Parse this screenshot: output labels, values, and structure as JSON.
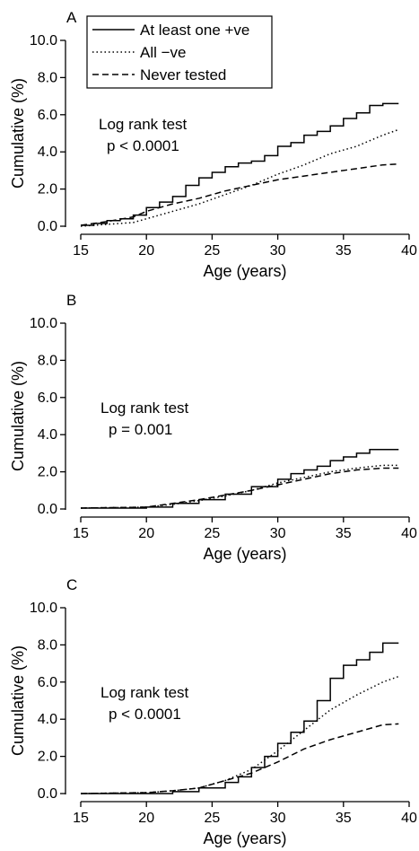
{
  "chart_data": [
    {
      "type": "line",
      "panel_label": "A",
      "xlabel": "Age (years)",
      "ylabel": "Cumulative (%)",
      "xlim": [
        15,
        40
      ],
      "ylim": [
        0,
        10
      ],
      "x_ticks": [
        15,
        20,
        25,
        30,
        35,
        40
      ],
      "y_ticks": [
        0,
        2,
        4,
        6,
        8,
        10
      ],
      "x_tick_labels": [
        "15",
        "20",
        "25",
        "30",
        "35",
        "40"
      ],
      "y_tick_labels": [
        "0.0",
        "2.0",
        "4.0",
        "6.0",
        "8.0",
        "10.0"
      ],
      "annotation": [
        "Log rank test",
        "p < 0.0001"
      ],
      "legend": {
        "placement": "top-left",
        "entries": [
          "At least one +ve",
          "All −ve",
          "Never tested"
        ]
      },
      "series": [
        {
          "name": "At least one +ve",
          "style": "solid",
          "step": true,
          "x": [
            15,
            16,
            17,
            18,
            19,
            20,
            21,
            22,
            23,
            24,
            25,
            26,
            27,
            28,
            29,
            30,
            31,
            32,
            33,
            34,
            35,
            36,
            37,
            38,
            39.2
          ],
          "y": [
            0.05,
            0.15,
            0.3,
            0.4,
            0.6,
            1.0,
            1.3,
            1.6,
            2.2,
            2.6,
            2.9,
            3.2,
            3.4,
            3.5,
            3.8,
            4.3,
            4.5,
            4.9,
            5.1,
            5.4,
            5.8,
            6.1,
            6.5,
            6.6,
            6.6
          ]
        },
        {
          "name": "All −ve",
          "style": "dotted",
          "x": [
            15,
            17,
            19,
            20,
            22,
            24,
            26,
            28,
            30,
            32,
            34,
            36,
            38,
            39.2
          ],
          "y": [
            0.0,
            0.1,
            0.2,
            0.4,
            0.8,
            1.2,
            1.7,
            2.2,
            2.8,
            3.3,
            3.9,
            4.3,
            4.9,
            5.2
          ]
        },
        {
          "name": "Never tested",
          "style": "dashed",
          "x": [
            15,
            17,
            19,
            20,
            22,
            24,
            26,
            28,
            30,
            32,
            34,
            36,
            38,
            39.2
          ],
          "y": [
            0.05,
            0.25,
            0.5,
            0.8,
            1.2,
            1.5,
            1.9,
            2.2,
            2.5,
            2.7,
            2.9,
            3.1,
            3.3,
            3.35
          ]
        }
      ]
    },
    {
      "type": "line",
      "panel_label": "B",
      "xlabel": "Age (years)",
      "ylabel": "Cumulative (%)",
      "xlim": [
        15,
        40
      ],
      "ylim": [
        0,
        10
      ],
      "x_ticks": [
        15,
        20,
        25,
        30,
        35,
        40
      ],
      "y_ticks": [
        0,
        2,
        4,
        6,
        8,
        10
      ],
      "x_tick_labels": [
        "15",
        "20",
        "25",
        "30",
        "35",
        "40"
      ],
      "y_tick_labels": [
        "0.0",
        "2.0",
        "4.0",
        "6.0",
        "8.0",
        "10.0"
      ],
      "annotation": [
        "Log rank test",
        "p = 0.001"
      ],
      "series": [
        {
          "name": "At least one +ve",
          "style": "solid",
          "step": true,
          "x": [
            15,
            20,
            22,
            24,
            26,
            28,
            30,
            31,
            32,
            33,
            34,
            35,
            36,
            37,
            39.2
          ],
          "y": [
            0.05,
            0.1,
            0.3,
            0.5,
            0.8,
            1.2,
            1.6,
            1.9,
            2.1,
            2.3,
            2.6,
            2.8,
            3.0,
            3.2,
            3.2
          ]
        },
        {
          "name": "All −ve",
          "style": "dotted",
          "x": [
            15,
            20,
            22,
            24,
            26,
            28,
            30,
            32,
            34,
            36,
            38,
            39.2
          ],
          "y": [
            0.05,
            0.1,
            0.25,
            0.45,
            0.7,
            1.0,
            1.4,
            1.7,
            2.0,
            2.2,
            2.35,
            2.35
          ]
        },
        {
          "name": "Never tested",
          "style": "dashed",
          "x": [
            15,
            20,
            22,
            24,
            26,
            28,
            30,
            32,
            34,
            36,
            38,
            39.2
          ],
          "y": [
            0.05,
            0.1,
            0.3,
            0.5,
            0.75,
            1.0,
            1.3,
            1.6,
            1.9,
            2.1,
            2.2,
            2.2
          ]
        }
      ]
    },
    {
      "type": "line",
      "panel_label": "C",
      "xlabel": "Age (years)",
      "ylabel": "Cumulative (%)",
      "xlim": [
        15,
        40
      ],
      "ylim": [
        0,
        10
      ],
      "x_ticks": [
        15,
        20,
        25,
        30,
        35,
        40
      ],
      "y_ticks": [
        0,
        2,
        4,
        6,
        8,
        10
      ],
      "x_tick_labels": [
        "15",
        "20",
        "25",
        "30",
        "35",
        "40"
      ],
      "y_tick_labels": [
        "0.0",
        "2.0",
        "4.0",
        "6.0",
        "8.0",
        "10.0"
      ],
      "annotation": [
        "Log rank test",
        "p < 0.0001"
      ],
      "series": [
        {
          "name": "At least one +ve",
          "style": "solid",
          "step": true,
          "x": [
            15,
            20,
            22,
            24,
            26,
            27,
            28,
            29,
            30,
            31,
            32,
            33,
            34,
            35,
            36,
            37,
            38,
            39.2
          ],
          "y": [
            0.0,
            0.0,
            0.1,
            0.3,
            0.6,
            0.9,
            1.4,
            2.0,
            2.7,
            3.3,
            3.9,
            5.0,
            6.2,
            6.9,
            7.2,
            7.6,
            8.1,
            8.1
          ]
        },
        {
          "name": "All −ve",
          "style": "dotted",
          "x": [
            15,
            20,
            22,
            24,
            26,
            28,
            30,
            32,
            34,
            36,
            38,
            39.2
          ],
          "y": [
            0.0,
            0.05,
            0.15,
            0.3,
            0.7,
            1.3,
            2.3,
            3.4,
            4.5,
            5.3,
            6.0,
            6.3
          ]
        },
        {
          "name": "Never tested",
          "style": "dashed",
          "x": [
            15,
            20,
            22,
            24,
            26,
            28,
            30,
            32,
            34,
            36,
            38,
            39.2
          ],
          "y": [
            0.0,
            0.05,
            0.15,
            0.3,
            0.7,
            1.1,
            1.7,
            2.4,
            2.9,
            3.3,
            3.7,
            3.75
          ]
        }
      ]
    }
  ]
}
